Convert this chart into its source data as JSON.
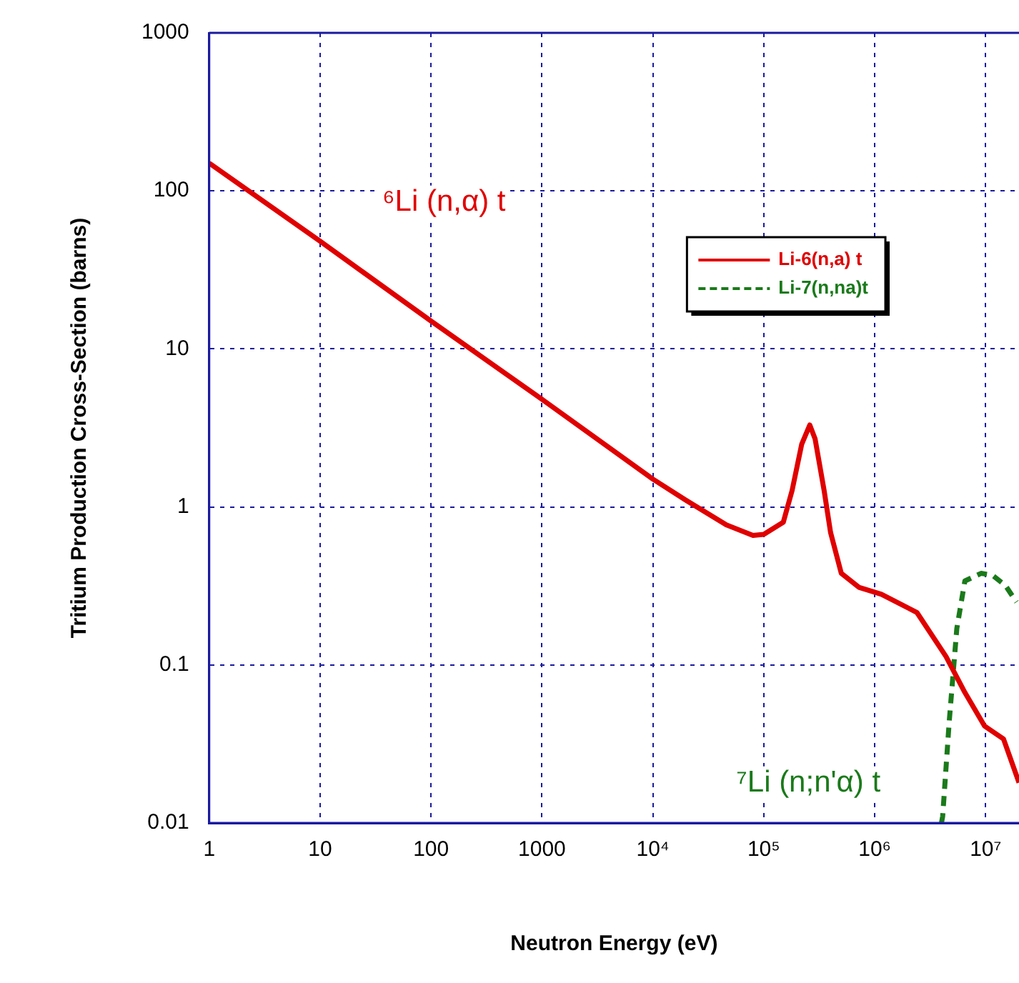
{
  "chart_data": {
    "type": "line",
    "xlabel": "Neutron Energy (eV)",
    "ylabel": "Tritium Production Cross-Section (barns)",
    "log": "xy",
    "grid": true,
    "legend": "top right",
    "marker": "none",
    "xlim": [
      1,
      20000000
    ],
    "xticks": [
      1,
      10,
      100,
      1000,
      {
        "value": 10000,
        "label": "10⁴"
      },
      {
        "value": 100000,
        "label": "10⁵"
      },
      {
        "value": 1000000,
        "label": "10⁶"
      },
      {
        "value": 10000000,
        "label": "10⁷"
      }
    ],
    "ylim": [
      0.01,
      1000
    ],
    "yticks": [
      0.01,
      0.1,
      1,
      10,
      100,
      1000
    ],
    "series": [
      {
        "name": "Li-6(n,a) t",
        "color": "#e00000",
        "line_style": "solid",
        "x": [
          1,
          10,
          100,
          1000,
          10000,
          20000,
          46000,
          80000,
          100000,
          150000,
          180000,
          220000,
          260000,
          290000,
          350000,
          400000,
          500000,
          720000,
          1150000,
          2400000,
          4400000,
          6500000,
          9800000,
          14500000,
          20000000
        ],
        "values": [
          150,
          48,
          15,
          4.8,
          1.5,
          1.1,
          0.77,
          0.66,
          0.67,
          0.8,
          1.27,
          2.5,
          3.3,
          2.7,
          1.27,
          0.69,
          0.38,
          0.31,
          0.28,
          0.215,
          0.113,
          0.067,
          0.041,
          0.034,
          0.018
        ]
      },
      {
        "name": "Li-7(n,na)t",
        "color": "#1a7a1a",
        "line_style": "dashed",
        "x": [
          4000000,
          4100000,
          4700000,
          5500000,
          6500000,
          9100000,
          11500000,
          15000000,
          19000000
        ],
        "values": [
          0.01,
          0.011,
          0.044,
          0.17,
          0.34,
          0.38,
          0.37,
          0.32,
          0.25
        ]
      }
    ],
    "annotations": [
      "⁶Li (n,α) t",
      "⁷Li (n;n'α) t"
    ]
  }
}
